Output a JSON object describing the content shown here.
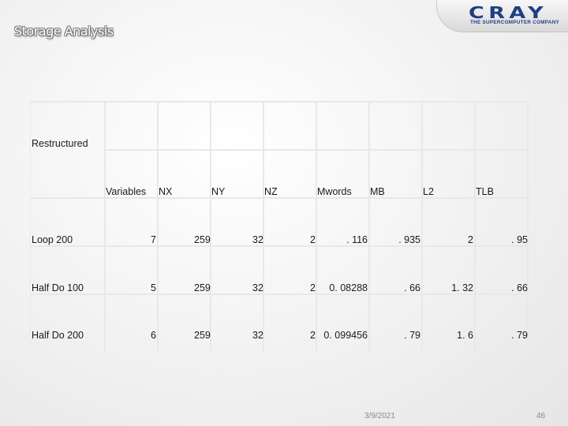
{
  "slide": {
    "title": "Storage Analysis"
  },
  "logo": {
    "main": "CRAY",
    "sub": "THE SUPERCOMPUTER COMPANY"
  },
  "table": {
    "section_label": "Restructured",
    "headers": [
      "Variables",
      "NX",
      "NY",
      "NZ",
      "Mwords",
      "MB",
      "L2",
      "TLB"
    ],
    "rows": [
      [
        "Loop 200",
        "7",
        "259",
        "32",
        "2",
        ". 116",
        ". 935",
        "2",
        ". 95"
      ],
      [
        "Half Do 100",
        "5",
        "259",
        "32",
        "2",
        "0. 08288",
        ". 66",
        "1. 32",
        ". 66"
      ],
      [
        "Half Do 200",
        "6",
        "259",
        "32",
        "2",
        "0. 099456",
        ". 79",
        "1. 6",
        ". 79"
      ]
    ]
  },
  "footer": {
    "date": "3/9/2021",
    "page": "46"
  }
}
